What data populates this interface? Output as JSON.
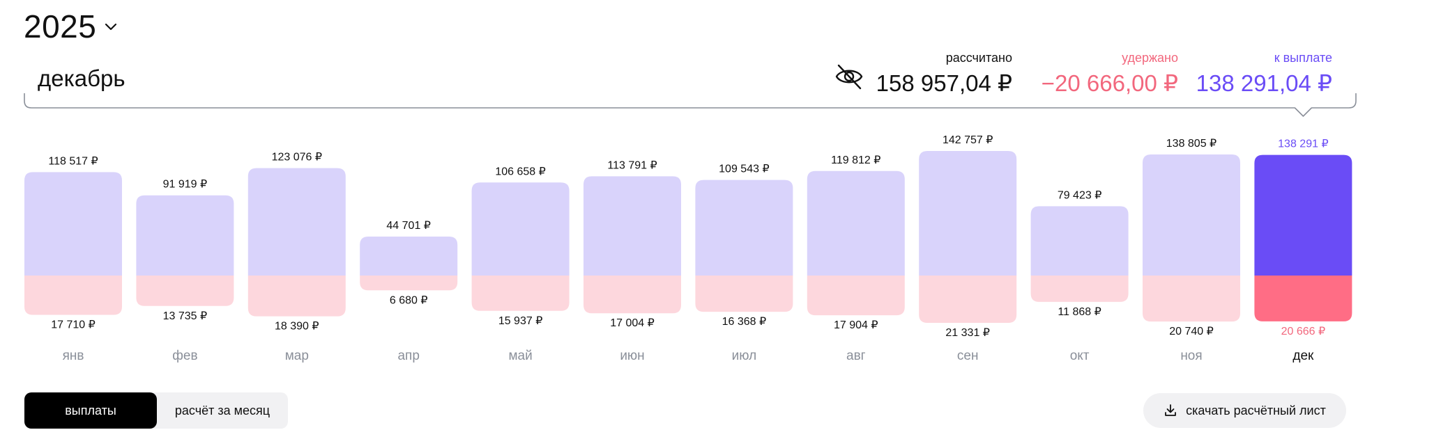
{
  "header": {
    "year": "2025",
    "month": "декабрь",
    "icons": {
      "year_toggle": "chevron-down-icon",
      "visibility": "eye-off-icon"
    }
  },
  "summary": {
    "calculated_label": "рассчитано",
    "calculated_value": "158 957,04 ₽",
    "withheld_label": "удержано",
    "withheld_value": "−20 666,00 ₽",
    "payout_label": "к выплате",
    "payout_value": "138 291,04 ₽"
  },
  "colors": {
    "payout_accent": "#6a4cf6",
    "withheld_accent": "#f2677d",
    "bar_payout": "#d9d3fb",
    "bar_withheld": "#fdd7dd",
    "bar_payout_selected": "#6a4cf6",
    "bar_withheld_selected": "#ff6d85"
  },
  "chart_data": {
    "type": "bar",
    "stacked": "diverging",
    "categories": [
      "янв",
      "фев",
      "мар",
      "апр",
      "май",
      "июн",
      "июл",
      "авг",
      "сен",
      "окт",
      "ноя",
      "дек"
    ],
    "series": [
      {
        "values": [
          118517,
          91919,
          123076,
          44701,
          106658,
          113791,
          109543,
          119812,
          142757,
          79423,
          138805,
          138291
        ]
      },
      {
        "values": [
          17710,
          13735,
          18390,
          6680,
          15937,
          17004,
          16368,
          17904,
          21331,
          11868,
          20740,
          20666
        ]
      }
    ],
    "top_labels": [
      "118 517 ₽",
      "91 919 ₽",
      "123 076 ₽",
      "44 701 ₽",
      "106 658 ₽",
      "113 791 ₽",
      "109 543 ₽",
      "119 812 ₽",
      "142 757 ₽",
      "79 423 ₽",
      "138 805 ₽",
      "138 291 ₽"
    ],
    "bottom_labels": [
      "17 710 ₽",
      "13 735 ₽",
      "18 390 ₽",
      "6 680 ₽",
      "15 937 ₽",
      "17 004 ₽",
      "16 368 ₽",
      "17 904 ₽",
      "21 331 ₽",
      "11 868 ₽",
      "20 740 ₽",
      "20 666 ₽"
    ],
    "selected_index": 11,
    "grid": false,
    "legend": "none"
  },
  "tabs": [
    {
      "label": "выплаты",
      "active": true
    },
    {
      "label": "расчёт за месяц",
      "active": false
    }
  ],
  "download": {
    "label": "скачать расчётный лист",
    "icon": "download-icon"
  }
}
